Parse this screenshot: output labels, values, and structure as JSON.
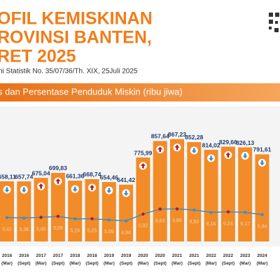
{
  "title_lines": [
    "OFIL KEMISKINAN",
    "ROVINSI BANTEN,",
    "RET 2025"
  ],
  "subtitle": "ni Statistik No. 35/07/36/Th. XIX, 25Juli 2025",
  "chart_data": {
    "type": "bar",
    "title": "s dan Persentase Penduduk Miskin (ribu jiwa)",
    "categories": [
      [
        "2016",
        "(Mar)"
      ],
      [
        "2016",
        "(Sept)"
      ],
      [
        "2017",
        "(Mar)"
      ],
      [
        "2017",
        "(Sept)"
      ],
      [
        "2018",
        "(Mar)"
      ],
      [
        "2018",
        "(Sept)"
      ],
      [
        "2019",
        "(Mar)"
      ],
      [
        "2019",
        "(Sept)"
      ],
      [
        "2020",
        "(Mar)"
      ],
      [
        "2020",
        "(Sept)"
      ],
      [
        "2021",
        "(Mar)"
      ],
      [
        "2021",
        "(Sept)"
      ],
      [
        "2022",
        "(Mar)"
      ],
      [
        "2022",
        "(Sept)"
      ],
      [
        "2023",
        "(Mar)"
      ],
      [
        "2024",
        "(Mar)"
      ]
    ],
    "values": [
      658.11,
      657.74,
      675.04,
      699.83,
      661.36,
      668.74,
      654.46,
      641.42,
      775.99,
      857.64,
      867.23,
      852.28,
      814.02,
      829.66,
      826.13,
      791.61
    ],
    "value_labels": [
      "658,11",
      "657,74",
      "675,04",
      "699,83",
      "661,36",
      "668,74",
      "654,46",
      "641,42",
      "775,99",
      "857,64",
      "867,23",
      "852,28",
      "814,02",
      "829,66",
      "826,13",
      "791,61"
    ],
    "color": "#f28c28",
    "ylim": [
      360,
      880
    ],
    "line": {
      "values": [
        5.42,
        5.36,
        5.45,
        5.59,
        5.24,
        5.25,
        5.09,
        4.94,
        5.92,
        6.63,
        6.66,
        6.5,
        6.16,
        6.24,
        6.17,
        5.84
      ],
      "value_labels": [
        "5,42",
        "5,36",
        "5,45",
        "5,59",
        "5,24",
        "5,25",
        "5,09",
        "4,94",
        "5,92",
        "6,63",
        "6,66",
        "6,50",
        "6,16",
        "6,24",
        "6,17",
        "5,84"
      ],
      "axis": "y2",
      "color": "#3a8fc8",
      "up_color": "#c0141c"
    },
    "y2lim": [
      2,
      17
    ]
  }
}
